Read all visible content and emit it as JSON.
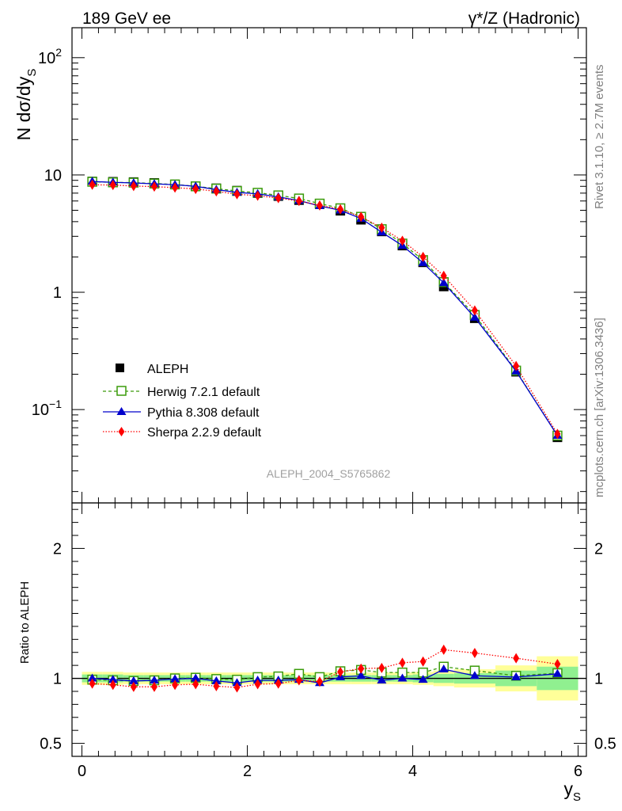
{
  "header": {
    "left": "189 GeV ee",
    "right": "γ*/Z (Hadronic)"
  },
  "side": {
    "rivet": "Rivet 3.1.10, ≥ 2.7M events",
    "mcplots": "mcplots.cern.ch [arXiv:1306.3436]"
  },
  "analysis_label": "ALEPH_2004_S5765862",
  "colors": {
    "aleph": "#000000",
    "herwig": "#3a9b0a",
    "pythia": "#0000cc",
    "sherpa": "#ff0000",
    "band_inner": "#90f090",
    "band_outer": "#ffff99"
  },
  "chart_data": [
    {
      "type": "line",
      "ylabel": "N dσ/dy",
      "ylabel_sub": "S",
      "yscale": "log",
      "ylim": [
        0.016,
        180
      ],
      "yticks": [
        {
          "v": 0.1,
          "base": "10",
          "exp": "−1"
        },
        {
          "v": 1,
          "base": "1",
          "exp": ""
        },
        {
          "v": 10,
          "base": "10",
          "exp": ""
        },
        {
          "v": 100,
          "base": "10",
          "exp": "2"
        }
      ],
      "xlim": [
        -0.12,
        6.1
      ],
      "x": [
        0.125,
        0.375,
        0.625,
        0.875,
        1.125,
        1.375,
        1.625,
        1.875,
        2.125,
        2.375,
        2.625,
        2.875,
        3.125,
        3.375,
        3.625,
        3.875,
        4.125,
        4.375,
        4.75,
        5.25,
        5.75
      ],
      "series": [
        {
          "name": "ALEPH",
          "style": "data",
          "values": [
            8.8,
            8.75,
            8.7,
            8.55,
            8.3,
            8.0,
            7.7,
            7.35,
            7.0,
            6.6,
            6.1,
            5.65,
            4.95,
            4.15,
            3.3,
            2.5,
            1.8,
            1.12,
            0.6,
            0.21,
            0.058
          ]
        },
        {
          "name": "Herwig 7.2.1 default",
          "style": "herwig",
          "values": [
            8.75,
            8.65,
            8.6,
            8.45,
            8.3,
            8.0,
            7.65,
            7.3,
            7.05,
            6.7,
            6.3,
            5.7,
            5.2,
            4.4,
            3.45,
            2.6,
            1.88,
            1.22,
            0.64,
            0.215,
            0.06
          ]
        },
        {
          "name": "Pythia 8.308 default",
          "style": "pythia",
          "values": [
            8.8,
            8.65,
            8.55,
            8.4,
            8.25,
            8.0,
            7.5,
            7.1,
            6.9,
            6.5,
            6.05,
            5.45,
            5.0,
            4.25,
            3.25,
            2.5,
            1.78,
            1.2,
            0.61,
            0.212,
            0.06
          ]
        },
        {
          "name": "Sherpa 2.2.9 default",
          "style": "sherpa",
          "values": [
            8.25,
            8.2,
            8.05,
            7.95,
            7.8,
            7.6,
            7.25,
            6.85,
            6.65,
            6.35,
            6.0,
            5.5,
            5.1,
            4.4,
            3.55,
            2.75,
            2.0,
            1.38,
            0.7,
            0.235,
            0.062
          ]
        }
      ]
    },
    {
      "type": "line",
      "ylabel": "Ratio to ALEPH",
      "ylim": [
        0.4,
        2.35
      ],
      "yticks": [
        {
          "v": 0.5,
          "label": "0.5"
        },
        {
          "v": 1,
          "label": "1"
        },
        {
          "v": 2,
          "label": "2"
        }
      ],
      "xlabel": "y",
      "xlabel_sub": "S",
      "xticks": [
        0,
        2,
        4,
        6
      ],
      "xlim": [
        -0.12,
        6.1
      ],
      "x": [
        0.125,
        0.375,
        0.625,
        0.875,
        1.125,
        1.375,
        1.625,
        1.875,
        2.125,
        2.375,
        2.625,
        2.875,
        3.125,
        3.375,
        3.625,
        3.875,
        4.125,
        4.375,
        4.75,
        5.25,
        5.75
      ],
      "bins": [
        [
          0,
          0.25
        ],
        [
          0.25,
          0.5
        ],
        [
          0.5,
          0.75
        ],
        [
          0.75,
          1.0
        ],
        [
          1.0,
          1.25
        ],
        [
          1.25,
          1.5
        ],
        [
          1.5,
          1.75
        ],
        [
          1.75,
          2.0
        ],
        [
          2.0,
          2.25
        ],
        [
          2.25,
          2.5
        ],
        [
          2.5,
          2.75
        ],
        [
          2.75,
          3.0
        ],
        [
          3.0,
          3.25
        ],
        [
          3.25,
          3.5
        ],
        [
          3.5,
          3.75
        ],
        [
          3.75,
          4.0
        ],
        [
          4.0,
          4.25
        ],
        [
          4.25,
          4.5
        ],
        [
          4.5,
          5.0
        ],
        [
          5.0,
          5.5
        ],
        [
          5.5,
          6.0
        ]
      ],
      "band_inner": [
        0.03,
        0.03,
        0.025,
        0.025,
        0.025,
        0.025,
        0.025,
        0.025,
        0.025,
        0.025,
        0.025,
        0.025,
        0.025,
        0.025,
        0.025,
        0.025,
        0.03,
        0.035,
        0.04,
        0.06,
        0.09
      ],
      "band_outer": [
        0.05,
        0.05,
        0.045,
        0.045,
        0.045,
        0.045,
        0.045,
        0.045,
        0.045,
        0.045,
        0.045,
        0.045,
        0.045,
        0.045,
        0.045,
        0.045,
        0.05,
        0.06,
        0.07,
        0.1,
        0.17
      ],
      "series": [
        {
          "name": "Herwig 7.2.1 default",
          "style": "herwig",
          "values": [
            0.99,
            0.985,
            0.98,
            0.985,
            1.0,
            1.005,
            0.995,
            0.99,
            1.01,
            1.015,
            1.035,
            1.01,
            1.055,
            1.065,
            1.045,
            1.045,
            1.045,
            1.09,
            1.06,
            1.02,
            1.04
          ]
        },
        {
          "name": "Pythia 8.308 default",
          "style": "pythia",
          "values": [
            1.0,
            0.99,
            0.98,
            0.985,
            0.995,
            1.0,
            0.98,
            0.965,
            0.985,
            0.985,
            0.99,
            0.965,
            1.01,
            1.02,
            0.985,
            1.0,
            0.99,
            1.07,
            1.02,
            1.01,
            1.035
          ]
        },
        {
          "name": "Sherpa 2.2.9 default",
          "style": "sherpa",
          "values": [
            0.96,
            0.95,
            0.935,
            0.935,
            0.95,
            0.955,
            0.94,
            0.93,
            0.955,
            0.96,
            0.985,
            0.975,
            1.05,
            1.075,
            1.08,
            1.12,
            1.13,
            1.22,
            1.195,
            1.155,
            1.11
          ]
        }
      ]
    }
  ]
}
